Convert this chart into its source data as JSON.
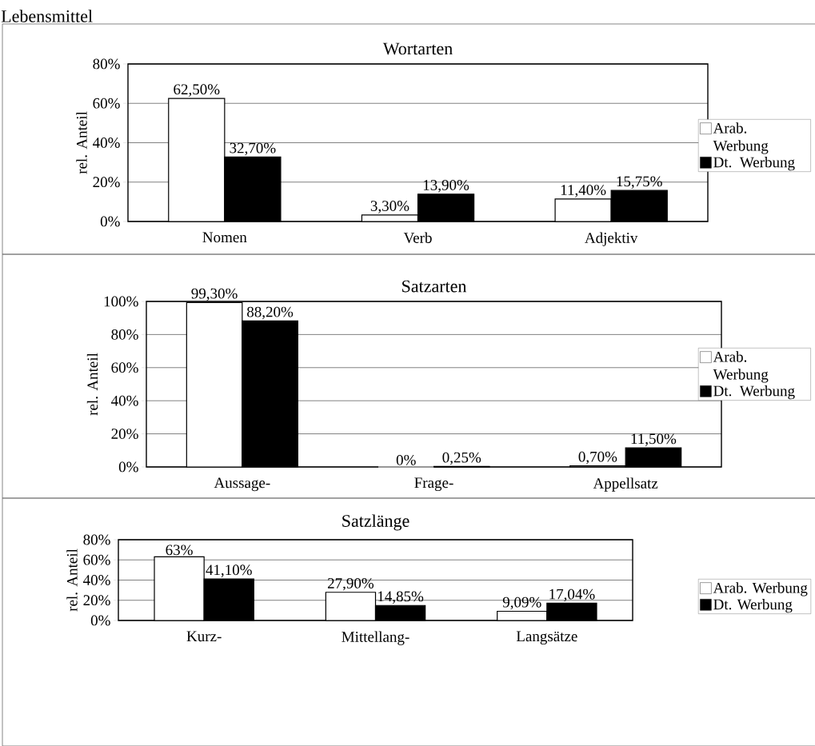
{
  "chart_data": [
    {
      "type": "bar",
      "title": "Wortarten",
      "ylabel": "rel. Anteil",
      "annotations": [
        "Lebensmittel"
      ],
      "categories": [
        "Nomen",
        "Verb",
        "Adjektiv"
      ],
      "series": [
        {
          "name": "Arab. Werbung",
          "color": "#ffffff",
          "values": [
            62.5,
            3.3,
            11.4
          ],
          "value_labels": [
            "62,50%",
            "3,30%",
            "11,40%"
          ]
        },
        {
          "name": "Dt. Werbung",
          "color": "#000000",
          "values": [
            32.7,
            13.9,
            15.75
          ],
          "value_labels": [
            "32,70%",
            "13,90%",
            "15,75%"
          ]
        }
      ],
      "ylim": [
        0,
        80
      ],
      "yticks": [
        {
          "value": 0,
          "label": "0%"
        },
        {
          "value": 20,
          "label": "20%"
        },
        {
          "value": 40,
          "label": "40%"
        },
        {
          "value": 60,
          "label": "60%"
        },
        {
          "value": 80,
          "label": "80%"
        }
      ],
      "grid": "y",
      "legend": "right"
    },
    {
      "type": "bar",
      "title": "Satzarten",
      "ylabel": "rel. Anteil",
      "categories": [
        "Aussage-",
        "Frage-",
        "Appellsatz"
      ],
      "series": [
        {
          "name": "Arab. Werbung",
          "color": "#ffffff",
          "values": [
            99.3,
            0,
            0.7
          ],
          "value_labels": [
            "99,30%",
            "0%",
            "0,70%"
          ]
        },
        {
          "name": "Dt. Werbung",
          "color": "#000000",
          "values": [
            88.2,
            0.25,
            11.5
          ],
          "value_labels": [
            "88,20%",
            "0,25%",
            "11,50%"
          ]
        }
      ],
      "ylim": [
        0,
        100
      ],
      "yticks": [
        {
          "value": 0,
          "label": "0%"
        },
        {
          "value": 20,
          "label": "20%"
        },
        {
          "value": 40,
          "label": "40%"
        },
        {
          "value": 60,
          "label": "60%"
        },
        {
          "value": 80,
          "label": "80%"
        },
        {
          "value": 100,
          "label": "100%"
        }
      ],
      "grid": "y",
      "legend": "right"
    },
    {
      "type": "bar",
      "title": "Satzlänge",
      "ylabel": "rel. Anteil",
      "categories": [
        "Kurz-",
        "Mittellang-",
        "Langsätze"
      ],
      "series": [
        {
          "name": "Arab. Werbung",
          "color": "#ffffff",
          "values": [
            63,
            27.9,
            9.09
          ],
          "value_labels": [
            "63%",
            "27,90%",
            "9,09%"
          ]
        },
        {
          "name": "Dt. Werbung",
          "color": "#000000",
          "values": [
            41.1,
            14.85,
            17.04
          ],
          "value_labels": [
            "41,10%",
            "14,85%",
            "17,04%"
          ]
        }
      ],
      "ylim": [
        0,
        80
      ],
      "yticks": [
        {
          "value": 0,
          "label": "0%"
        },
        {
          "value": 20,
          "label": "20%"
        },
        {
          "value": 40,
          "label": "40%"
        },
        {
          "value": 60,
          "label": "60%"
        },
        {
          "value": 80,
          "label": "80%"
        }
      ],
      "grid": "y",
      "legend": "right"
    }
  ]
}
